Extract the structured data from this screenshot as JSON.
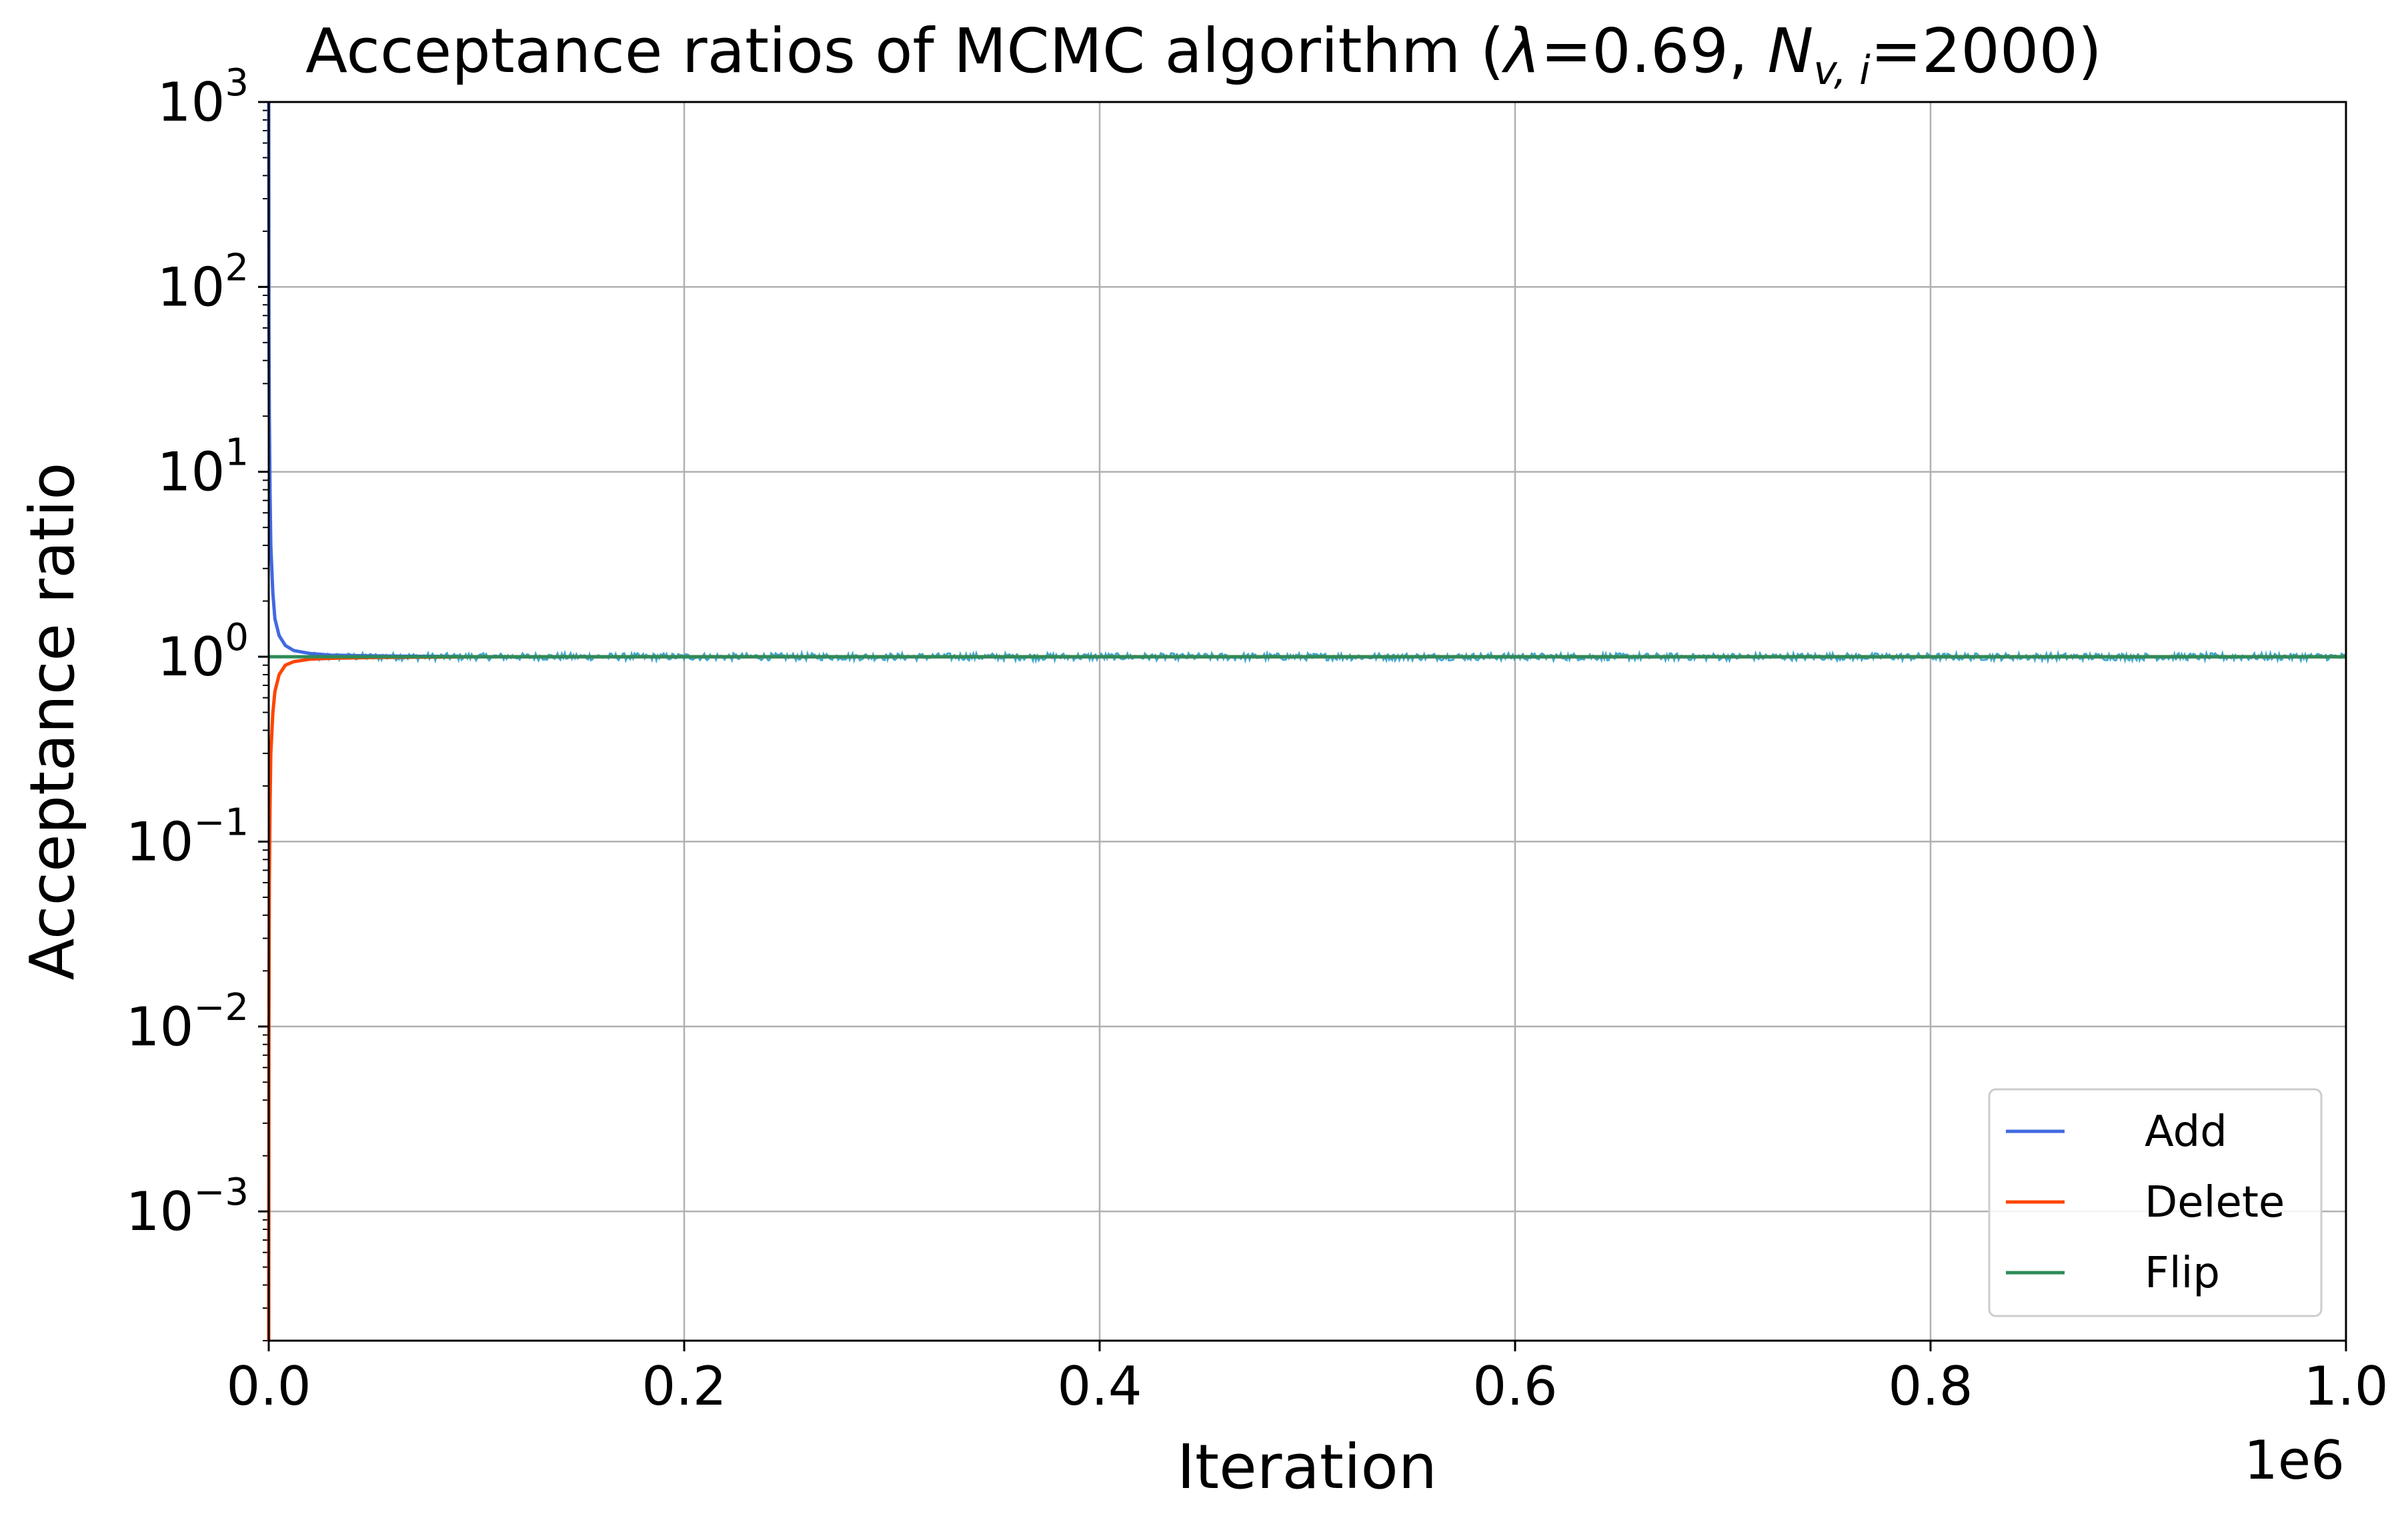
{
  "chart_data": {
    "type": "line",
    "title": {
      "prefix": "Acceptance ratios of MCMC algorithm (",
      "lambda_symbol": "λ",
      "lambda_value": "=0.69, ",
      "n_symbol": "N",
      "n_subscript": "v, i",
      "n_value": "=2000)"
    },
    "xlabel": "Iteration",
    "ylabel": "Acceptance ratio",
    "x_offset_label": "1e6",
    "xlim": [
      0,
      1000000
    ],
    "ylim": [
      0.0002,
      1000
    ],
    "y_scale": "log",
    "x_ticks": [
      {
        "value": 0,
        "label": "0.0"
      },
      {
        "value": 200000,
        "label": "0.2"
      },
      {
        "value": 400000,
        "label": "0.4"
      },
      {
        "value": 600000,
        "label": "0.6"
      },
      {
        "value": 800000,
        "label": "0.8"
      },
      {
        "value": 1000000,
        "label": "1.0"
      }
    ],
    "y_ticks": [
      {
        "value": 0.001,
        "base": "10",
        "exp": "−3"
      },
      {
        "value": 0.01,
        "base": "10",
        "exp": "−2"
      },
      {
        "value": 0.1,
        "base": "10",
        "exp": "−1"
      },
      {
        "value": 1,
        "base": "10",
        "exp": "0"
      },
      {
        "value": 10,
        "base": "10",
        "exp": "1"
      },
      {
        "value": 100,
        "base": "10",
        "exp": "2"
      },
      {
        "value": 1000,
        "base": "10",
        "exp": "3"
      }
    ],
    "grid": true,
    "legend_position": "lower-right",
    "series": [
      {
        "name": "Add",
        "color": "#4169e1",
        "x": [
          0,
          100,
          300,
          600,
          1000,
          2000,
          3000,
          5000,
          8000,
          12000,
          20000,
          30000,
          50000,
          100000,
          200000,
          300000,
          400000,
          500000,
          600000,
          700000,
          800000,
          900000,
          1000000
        ],
        "y": [
          1000,
          60,
          20,
          8,
          4,
          2.2,
          1.6,
          1.3,
          1.15,
          1.08,
          1.04,
          1.02,
          1.01,
          1.0,
          1.0,
          1.0,
          1.0,
          1.0,
          1.0,
          1.0,
          1.0,
          1.0,
          1.0
        ]
      },
      {
        "name": "Delete",
        "color": "#ff4500",
        "x": [
          0,
          100,
          300,
          600,
          1000,
          2000,
          3000,
          5000,
          8000,
          12000,
          20000,
          30000,
          50000,
          100000,
          200000,
          300000,
          400000,
          500000,
          600000,
          700000,
          800000,
          900000,
          1000000
        ],
        "y": [
          0.0002,
          0.01,
          0.06,
          0.15,
          0.3,
          0.5,
          0.65,
          0.8,
          0.9,
          0.94,
          0.97,
          0.98,
          0.99,
          1.0,
          1.0,
          1.0,
          1.0,
          1.0,
          1.0,
          1.0,
          1.0,
          1.0,
          1.0
        ]
      },
      {
        "name": "Flip",
        "color": "#2e8b57",
        "x": [
          0,
          1000000
        ],
        "y": [
          1.0,
          1.0
        ]
      }
    ],
    "noise_color": "#1f9ac9"
  }
}
